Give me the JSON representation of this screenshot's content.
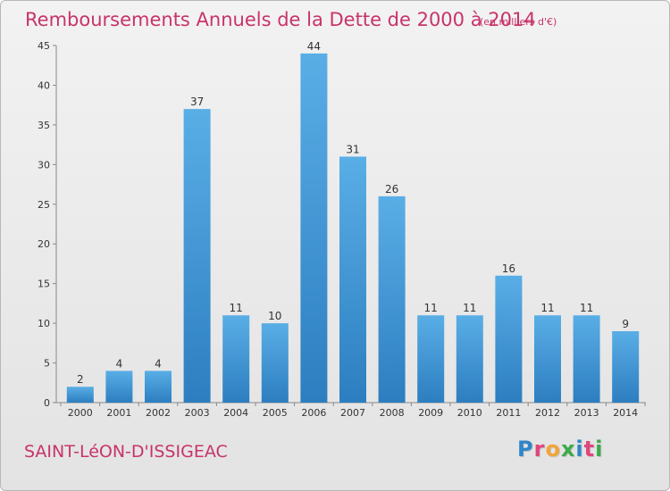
{
  "header": {
    "title": "Remboursements Annuels de la Dette de 2000 à 2014",
    "unit": "(en milliers d'€)"
  },
  "footer": {
    "commune": "SAINT-LéON-D'ISSIGEAC",
    "logo_letters": [
      "P",
      "r",
      "o",
      "x",
      "i",
      "t",
      "i"
    ],
    "logo_colors": [
      "#2e86c8",
      "#e0457b",
      "#f2a53a",
      "#3cab4a",
      "#2e86c8",
      "#e0457b",
      "#3cab4a"
    ]
  },
  "chart_data": {
    "type": "bar",
    "title": "Remboursements Annuels de la Dette de 2000 à 2014",
    "xlabel": "",
    "ylabel": "",
    "categories": [
      "2000",
      "2001",
      "2002",
      "2003",
      "2004",
      "2005",
      "2006",
      "2007",
      "2008",
      "2009",
      "2010",
      "2011",
      "2012",
      "2013",
      "2014"
    ],
    "values": [
      2,
      4,
      4,
      37,
      11,
      10,
      44,
      31,
      26,
      11,
      11,
      16,
      11,
      11,
      9
    ],
    "ylim": [
      0,
      45
    ],
    "yticks": [
      0,
      5,
      10,
      15,
      20,
      25,
      30,
      35,
      40,
      45
    ],
    "grid": false,
    "bar_color_top": "#5aaee6",
    "bar_color_bottom": "#2c7ec0"
  }
}
